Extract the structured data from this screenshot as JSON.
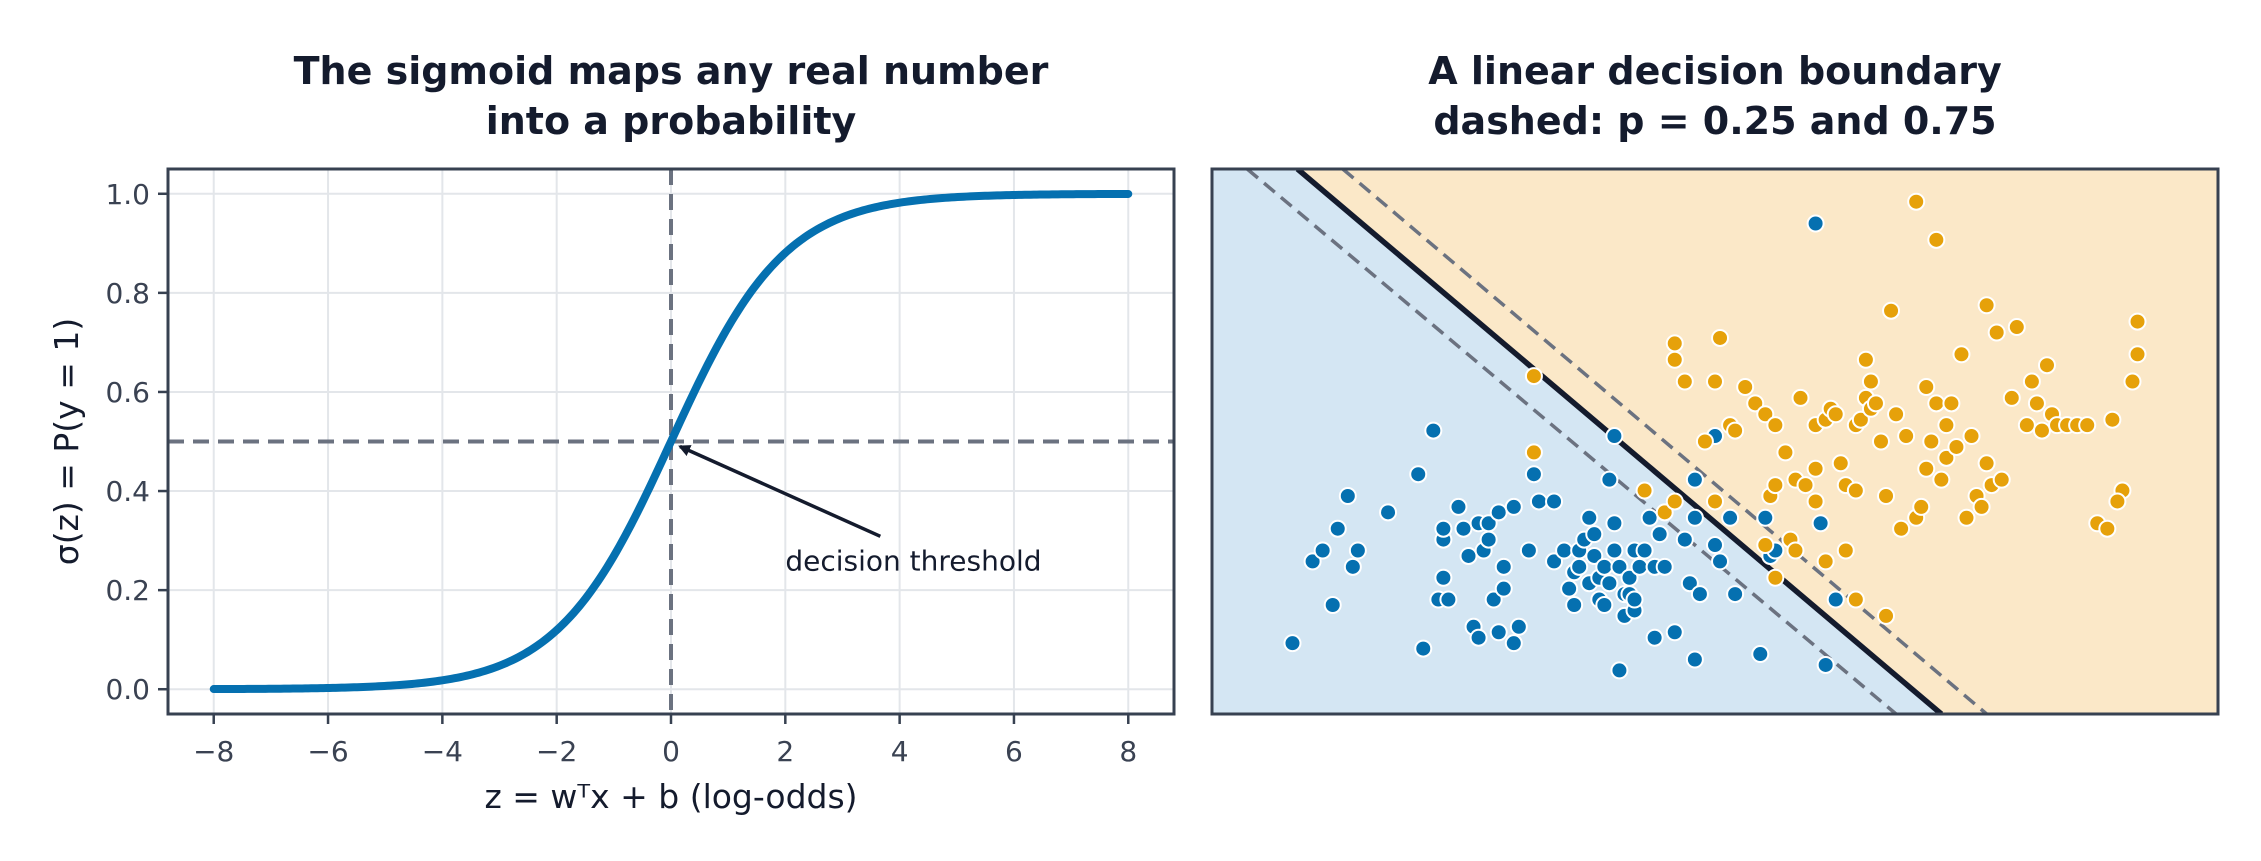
{
  "chart_data": [
    {
      "type": "line",
      "title": [
        "The sigmoid maps any real number",
        "into a probability"
      ],
      "xlabel": "z = wᵀx + b   (log-odds)",
      "ylabel": "σ(z) = P(y = 1)",
      "xlim": [
        -8.8,
        8.8
      ],
      "ylim": [
        -0.05,
        1.05
      ],
      "xticks": [
        -8,
        -6,
        -4,
        -2,
        0,
        2,
        4,
        6,
        8
      ],
      "xtick_labels": [
        "−8",
        "−6",
        "−4",
        "−2",
        "0",
        "2",
        "4",
        "6",
        "8"
      ],
      "yticks": [
        0.0,
        0.2,
        0.4,
        0.6,
        0.8,
        1.0
      ],
      "ytick_labels": [
        "0.0",
        "0.2",
        "0.4",
        "0.6",
        "0.8",
        "1.0"
      ],
      "grid": true,
      "function": "sigmoid",
      "x_range": [
        -8,
        8
      ],
      "line_color": "#0570b0",
      "reference_lines": {
        "vertical_x": 0,
        "horizontal_y": 0.5,
        "color": "#6b7280"
      },
      "annotation": {
        "text": "decision threshold",
        "point": [
          0,
          0.5
        ],
        "text_pos": [
          2,
          0.24
        ]
      }
    },
    {
      "type": "scatter",
      "title": [
        "A linear decision boundary",
        "dashed: p = 0.25 and 0.75"
      ],
      "xlim": [
        0,
        1
      ],
      "ylim": [
        0,
        1
      ],
      "axes_visible": false,
      "region_colors": {
        "class0": "#d4e6f3",
        "class1": "#fbe8c8"
      },
      "boundary": {
        "x_at_top": 0.085,
        "x_at_bottom": 0.725,
        "color": "#141b2d"
      },
      "dashed_boundaries": [
        {
          "label": "p = 0.25",
          "x_at_top": 0.035,
          "x_at_bottom": 0.68
        },
        {
          "label": "p = 0.75",
          "x_at_top": 0.13,
          "x_at_bottom": 0.77
        }
      ],
      "series": [
        {
          "color": "#0570b0",
          "points": [
            [
              0.08,
              0.13
            ],
            [
              0.1,
              0.28
            ],
            [
              0.11,
              0.3
            ],
            [
              0.12,
              0.2
            ],
            [
              0.125,
              0.34
            ],
            [
              0.135,
              0.4
            ],
            [
              0.14,
              0.27
            ],
            [
              0.145,
              0.3
            ],
            [
              0.175,
              0.37
            ],
            [
              0.205,
              0.44
            ],
            [
              0.21,
              0.12
            ],
            [
              0.22,
              0.52
            ],
            [
              0.225,
              0.21
            ],
            [
              0.23,
              0.25
            ],
            [
              0.23,
              0.32
            ],
            [
              0.23,
              0.34
            ],
            [
              0.235,
              0.21
            ],
            [
              0.245,
              0.38
            ],
            [
              0.25,
              0.34
            ],
            [
              0.255,
              0.29
            ],
            [
              0.26,
              0.16
            ],
            [
              0.265,
              0.14
            ],
            [
              0.265,
              0.35
            ],
            [
              0.27,
              0.3
            ],
            [
              0.275,
              0.32
            ],
            [
              0.275,
              0.35
            ],
            [
              0.28,
              0.21
            ],
            [
              0.285,
              0.15
            ],
            [
              0.285,
              0.37
            ],
            [
              0.29,
              0.27
            ],
            [
              0.29,
              0.23
            ],
            [
              0.3,
              0.13
            ],
            [
              0.3,
              0.38
            ],
            [
              0.305,
              0.16
            ],
            [
              0.315,
              0.3
            ],
            [
              0.32,
              0.44
            ],
            [
              0.325,
              0.39
            ],
            [
              0.34,
              0.39
            ],
            [
              0.34,
              0.28
            ],
            [
              0.35,
              0.3
            ],
            [
              0.355,
              0.23
            ],
            [
              0.36,
              0.26
            ],
            [
              0.36,
              0.2
            ],
            [
              0.365,
              0.27
            ],
            [
              0.365,
              0.3
            ],
            [
              0.37,
              0.32
            ],
            [
              0.375,
              0.24
            ],
            [
              0.375,
              0.36
            ],
            [
              0.38,
              0.29
            ],
            [
              0.38,
              0.33
            ],
            [
              0.385,
              0.21
            ],
            [
              0.385,
              0.25
            ],
            [
              0.39,
              0.27
            ],
            [
              0.39,
              0.2
            ],
            [
              0.395,
              0.24
            ],
            [
              0.395,
              0.43
            ],
            [
              0.4,
              0.35
            ],
            [
              0.4,
              0.3
            ],
            [
              0.405,
              0.27
            ],
            [
              0.41,
              0.18
            ],
            [
              0.41,
              0.22
            ],
            [
              0.415,
              0.22
            ],
            [
              0.415,
              0.25
            ],
            [
              0.42,
              0.19
            ],
            [
              0.42,
              0.3
            ],
            [
              0.425,
              0.27
            ],
            [
              0.43,
              0.3
            ],
            [
              0.435,
              0.36
            ],
            [
              0.44,
              0.27
            ],
            [
              0.44,
              0.27
            ],
            [
              0.445,
              0.33
            ],
            [
              0.45,
              0.27
            ],
            [
              0.405,
              0.08
            ],
            [
              0.4,
              0.51
            ],
            [
              0.42,
              0.21
            ],
            [
              0.44,
              0.14
            ],
            [
              0.46,
              0.15
            ],
            [
              0.47,
              0.32
            ],
            [
              0.475,
              0.24
            ],
            [
              0.48,
              0.36
            ],
            [
              0.48,
              0.43
            ],
            [
              0.485,
              0.22
            ],
            [
              0.5,
              0.31
            ],
            [
              0.505,
              0.28
            ],
            [
              0.515,
              0.36
            ],
            [
              0.52,
              0.22
            ],
            [
              0.5,
              0.51
            ],
            [
              0.48,
              0.1
            ],
            [
              0.555,
              0.29
            ],
            [
              0.55,
              0.36
            ],
            [
              0.545,
              0.11
            ],
            [
              0.56,
              0.3
            ],
            [
              0.62,
              0.21
            ],
            [
              0.61,
              0.09
            ],
            [
              0.6,
              0.9
            ],
            [
              0.605,
              0.35
            ]
          ]
        },
        {
          "color": "#e6a10a",
          "points": [
            [
              0.32,
              0.62
            ],
            [
              0.32,
              0.48
            ],
            [
              0.43,
              0.41
            ],
            [
              0.45,
              0.37
            ],
            [
              0.46,
              0.39
            ],
            [
              0.5,
              0.39
            ],
            [
              0.49,
              0.5
            ],
            [
              0.515,
              0.53
            ],
            [
              0.52,
              0.52
            ],
            [
              0.53,
              0.6
            ],
            [
              0.54,
              0.57
            ],
            [
              0.55,
              0.55
            ],
            [
              0.555,
              0.4
            ],
            [
              0.56,
              0.42
            ],
            [
              0.56,
              0.53
            ],
            [
              0.57,
              0.48
            ],
            [
              0.575,
              0.32
            ],
            [
              0.58,
              0.43
            ],
            [
              0.585,
              0.58
            ],
            [
              0.59,
              0.42
            ],
            [
              0.6,
              0.53
            ],
            [
              0.61,
              0.54
            ],
            [
              0.615,
              0.56
            ],
            [
              0.62,
              0.55
            ],
            [
              0.625,
              0.46
            ],
            [
              0.63,
              0.42
            ],
            [
              0.63,
              0.3
            ],
            [
              0.64,
              0.41
            ],
            [
              0.64,
              0.53
            ],
            [
              0.645,
              0.54
            ],
            [
              0.65,
              0.58
            ],
            [
              0.655,
              0.56
            ],
            [
              0.66,
              0.57
            ],
            [
              0.665,
              0.5
            ],
            [
              0.67,
              0.4
            ],
            [
              0.675,
              0.74
            ],
            [
              0.68,
              0.55
            ],
            [
              0.685,
              0.34
            ],
            [
              0.69,
              0.51
            ],
            [
              0.7,
              0.36
            ],
            [
              0.705,
              0.38
            ],
            [
              0.71,
              0.6
            ],
            [
              0.71,
              0.45
            ],
            [
              0.715,
              0.5
            ],
            [
              0.72,
              0.57
            ],
            [
              0.72,
              0.87
            ],
            [
              0.725,
              0.43
            ],
            [
              0.73,
              0.47
            ],
            [
              0.73,
              0.53
            ],
            [
              0.735,
              0.57
            ],
            [
              0.74,
              0.49
            ],
            [
              0.745,
              0.66
            ],
            [
              0.75,
              0.36
            ],
            [
              0.755,
              0.51
            ],
            [
              0.76,
              0.4
            ],
            [
              0.765,
              0.38
            ],
            [
              0.77,
              0.46
            ],
            [
              0.775,
              0.42
            ],
            [
              0.785,
              0.43
            ],
            [
              0.795,
              0.58
            ],
            [
              0.8,
              0.71
            ],
            [
              0.81,
              0.53
            ],
            [
              0.815,
              0.61
            ],
            [
              0.82,
              0.57
            ],
            [
              0.825,
              0.52
            ],
            [
              0.83,
              0.64
            ],
            [
              0.835,
              0.55
            ],
            [
              0.84,
              0.53
            ],
            [
              0.85,
              0.53
            ],
            [
              0.86,
              0.53
            ],
            [
              0.87,
              0.53
            ],
            [
              0.88,
              0.35
            ],
            [
              0.89,
              0.34
            ],
            [
              0.895,
              0.54
            ],
            [
              0.905,
              0.41
            ],
            [
              0.915,
              0.61
            ],
            [
              0.92,
              0.72
            ],
            [
              0.78,
              0.7
            ],
            [
              0.77,
              0.75
            ],
            [
              0.65,
              0.65
            ],
            [
              0.655,
              0.61
            ],
            [
              0.6,
              0.45
            ],
            [
              0.6,
              0.39
            ],
            [
              0.64,
              0.21
            ],
            [
              0.56,
              0.25
            ],
            [
              0.55,
              0.31
            ],
            [
              0.67,
              0.18
            ],
            [
              0.7,
              0.94
            ],
            [
              0.92,
              0.66
            ],
            [
              0.9,
              0.39
            ],
            [
              0.46,
              0.65
            ],
            [
              0.47,
              0.61
            ],
            [
              0.46,
              0.68
            ],
            [
              0.5,
              0.61
            ],
            [
              0.505,
              0.69
            ],
            [
              0.58,
              0.3
            ],
            [
              0.61,
              0.28
            ]
          ]
        }
      ]
    }
  ]
}
